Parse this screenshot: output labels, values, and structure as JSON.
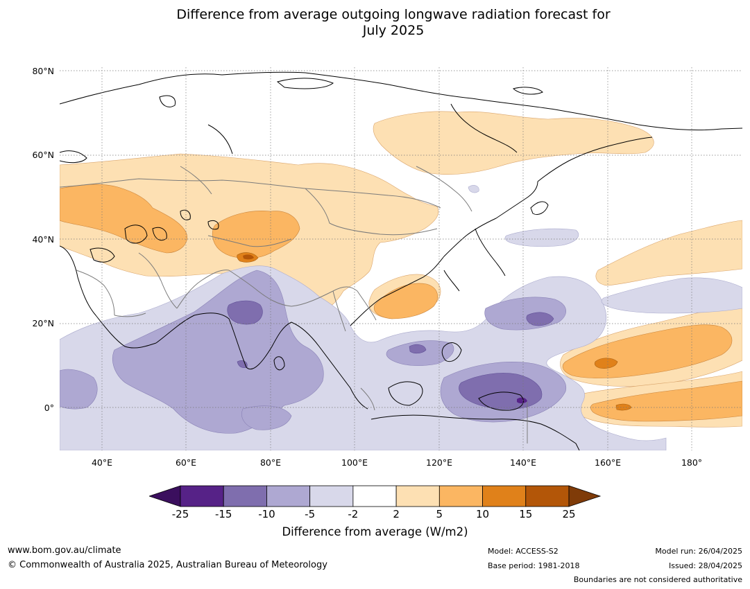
{
  "title_line1": "Difference from average outgoing longwave radiation forecast for",
  "title_line2": "July 2025",
  "lat_labels": [
    "80°N",
    "60°N",
    "40°N",
    "20°N",
    "0°"
  ],
  "lon_labels": [
    "40°E",
    "60°E",
    "80°E",
    "100°E",
    "120°E",
    "140°E",
    "160°E",
    "180°"
  ],
  "colorbar": {
    "ticks": [
      "-25",
      "-15",
      "-10",
      "-5",
      "-2",
      "2",
      "5",
      "10",
      "15",
      "25"
    ],
    "colors": [
      "#3b0f5e",
      "#562287",
      "#7f6eae",
      "#aea8d2",
      "#d8d8ea",
      "#ffffff",
      "#fde0b3",
      "#fbb662",
      "#e0811a",
      "#b35608",
      "#7f3b08"
    ],
    "label": "Difference from average (W/m2)"
  },
  "footer": {
    "website": "www.bom.gov.au/climate",
    "copyright": "© Commonwealth of Australia 2025, Australian Bureau of Meteorology",
    "model": "Model: ACCESS-S2",
    "base_period": "Base period: 1981-2018",
    "model_run": "Model run: 26/04/2025",
    "issued": "Issued: 28/04/2025",
    "disclaimer": "Boundaries are not considered authoritative"
  }
}
